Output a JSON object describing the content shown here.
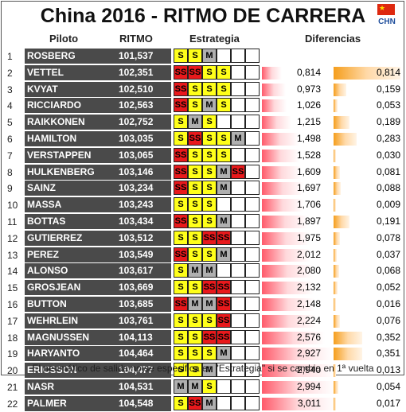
{
  "title": "China 2016 - RITMO DE CARRERA",
  "flag_country": "CHN",
  "headers": {
    "driver": "Piloto",
    "pace": "RITMO",
    "strategy": "Estrategia",
    "gaps": "Diferencias"
  },
  "footer": "El neumático de salida no se especifica en \"Estrategia\" si se cambia en 1ª vuelta",
  "colors": {
    "soft": "#ffff1a",
    "supersoft": "#e8191c",
    "medium": "#b0b0b0",
    "gap_bar": "#ff5a6a",
    "interval_bar": "#f59e1c"
  },
  "rows": [
    {
      "pos": "1",
      "driver": "ROSBERG",
      "pace": "101,537",
      "stints": [
        "S",
        "S",
        "M",
        "",
        ""
      ],
      "gap": "",
      "interval": ""
    },
    {
      "pos": "2",
      "driver": "VETTEL",
      "pace": "102,351",
      "stints": [
        "SS",
        "SS",
        "S",
        "S",
        ""
      ],
      "gap": "0,814",
      "interval": "0,814"
    },
    {
      "pos": "3",
      "driver": "KVYAT",
      "pace": "102,510",
      "stints": [
        "SS",
        "S",
        "S",
        "S",
        ""
      ],
      "gap": "0,973",
      "interval": "0,159"
    },
    {
      "pos": "4",
      "driver": "RICCIARDO",
      "pace": "102,563",
      "stints": [
        "SS",
        "S",
        "M",
        "S",
        ""
      ],
      "gap": "1,026",
      "interval": "0,053"
    },
    {
      "pos": "5",
      "driver": "RAIKKONEN",
      "pace": "102,752",
      "stints": [
        "S",
        "M",
        "S",
        "",
        ""
      ],
      "gap": "1,215",
      "interval": "0,189"
    },
    {
      "pos": "6",
      "driver": "HAMILTON",
      "pace": "103,035",
      "stints": [
        "S",
        "SS",
        "S",
        "S",
        "M"
      ],
      "gap": "1,498",
      "interval": "0,283"
    },
    {
      "pos": "7",
      "driver": "VERSTAPPEN",
      "pace": "103,065",
      "stints": [
        "SS",
        "S",
        "S",
        "S",
        ""
      ],
      "gap": "1,528",
      "interval": "0,030"
    },
    {
      "pos": "8",
      "driver": "HULKENBERG",
      "pace": "103,146",
      "stints": [
        "SS",
        "S",
        "S",
        "M",
        "SS"
      ],
      "gap": "1,609",
      "interval": "0,081"
    },
    {
      "pos": "9",
      "driver": "SAINZ",
      "pace": "103,234",
      "stints": [
        "SS",
        "S",
        "S",
        "M",
        ""
      ],
      "gap": "1,697",
      "interval": "0,088"
    },
    {
      "pos": "10",
      "driver": "MASSA",
      "pace": "103,243",
      "stints": [
        "S",
        "S",
        "S",
        "",
        ""
      ],
      "gap": "1,706",
      "interval": "0,009"
    },
    {
      "pos": "11",
      "driver": "BOTTAS",
      "pace": "103,434",
      "stints": [
        "SS",
        "S",
        "S",
        "M",
        ""
      ],
      "gap": "1,897",
      "interval": "0,191"
    },
    {
      "pos": "12",
      "driver": "GUTIERREZ",
      "pace": "103,512",
      "stints": [
        "S",
        "S",
        "SS",
        "SS",
        ""
      ],
      "gap": "1,975",
      "interval": "0,078"
    },
    {
      "pos": "13",
      "driver": "PEREZ",
      "pace": "103,549",
      "stints": [
        "SS",
        "S",
        "S",
        "M",
        ""
      ],
      "gap": "2,012",
      "interval": "0,037"
    },
    {
      "pos": "14",
      "driver": "ALONSO",
      "pace": "103,617",
      "stints": [
        "S",
        "M",
        "M",
        "",
        ""
      ],
      "gap": "2,080",
      "interval": "0,068"
    },
    {
      "pos": "15",
      "driver": "GROSJEAN",
      "pace": "103,669",
      "stints": [
        "S",
        "S",
        "SS",
        "SS",
        ""
      ],
      "gap": "2,132",
      "interval": "0,052"
    },
    {
      "pos": "16",
      "driver": "BUTTON",
      "pace": "103,685",
      "stints": [
        "SS",
        "M",
        "M",
        "SS",
        ""
      ],
      "gap": "2,148",
      "interval": "0,016"
    },
    {
      "pos": "17",
      "driver": "WEHRLEIN",
      "pace": "103,761",
      "stints": [
        "S",
        "S",
        "S",
        "SS",
        ""
      ],
      "gap": "2,224",
      "interval": "0,076"
    },
    {
      "pos": "18",
      "driver": "MAGNUSSEN",
      "pace": "104,113",
      "stints": [
        "S",
        "S",
        "SS",
        "SS",
        ""
      ],
      "gap": "2,576",
      "interval": "0,352"
    },
    {
      "pos": "19",
      "driver": "HARYANTO",
      "pace": "104,464",
      "stints": [
        "S",
        "S",
        "S",
        "M",
        ""
      ],
      "gap": "2,927",
      "interval": "0,351"
    },
    {
      "pos": "20",
      "driver": "ERICSSON",
      "pace": "104,477",
      "stints": [
        "S",
        "S",
        "M",
        "",
        ""
      ],
      "gap": "2,940",
      "interval": "0,013"
    },
    {
      "pos": "21",
      "driver": "NASR",
      "pace": "104,531",
      "stints": [
        "M",
        "M",
        "S",
        "",
        ""
      ],
      "gap": "2,994",
      "interval": "0,054"
    },
    {
      "pos": "22",
      "driver": "PALMER",
      "pace": "104,548",
      "stints": [
        "S",
        "SS",
        "M",
        "",
        ""
      ],
      "gap": "3,011",
      "interval": "0,017"
    }
  ]
}
